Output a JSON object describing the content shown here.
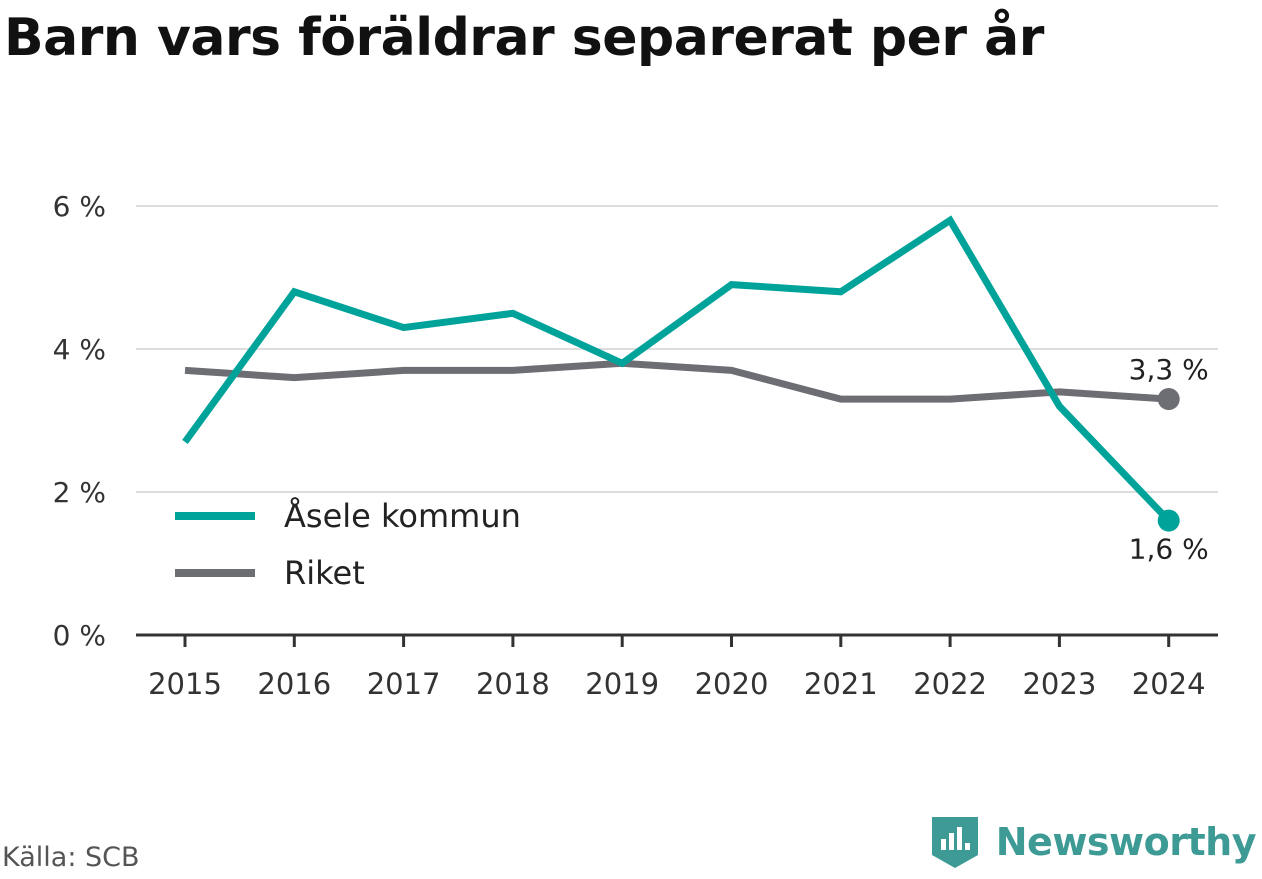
{
  "header": {
    "title": "Barn vars föräldrar separerat per år"
  },
  "chart_data": {
    "type": "line",
    "categories": [
      "2015",
      "2016",
      "2017",
      "2018",
      "2019",
      "2020",
      "2021",
      "2022",
      "2023",
      "2024"
    ],
    "series": [
      {
        "name": "Åsele kommun",
        "color": "#00a39a",
        "values": [
          2.7,
          4.8,
          4.3,
          4.5,
          3.8,
          4.9,
          4.8,
          5.8,
          3.2,
          1.6
        ],
        "end_label": "1,6 %"
      },
      {
        "name": "Riket",
        "color": "#6d6d74",
        "values": [
          3.7,
          3.6,
          3.7,
          3.7,
          3.8,
          3.7,
          3.3,
          3.3,
          3.4,
          3.3
        ],
        "end_label": "3,3 %"
      }
    ],
    "yticks": [
      {
        "value": 0,
        "label": "0 %"
      },
      {
        "value": 2,
        "label": "2 %"
      },
      {
        "value": 4,
        "label": "4 %"
      },
      {
        "value": 6,
        "label": "6 %"
      }
    ],
    "ylim": [
      0,
      6
    ],
    "grid": true,
    "legend_position": "bottom-left"
  },
  "footer": {
    "source": "Källa: SCB",
    "brand": "Newsworthy"
  }
}
